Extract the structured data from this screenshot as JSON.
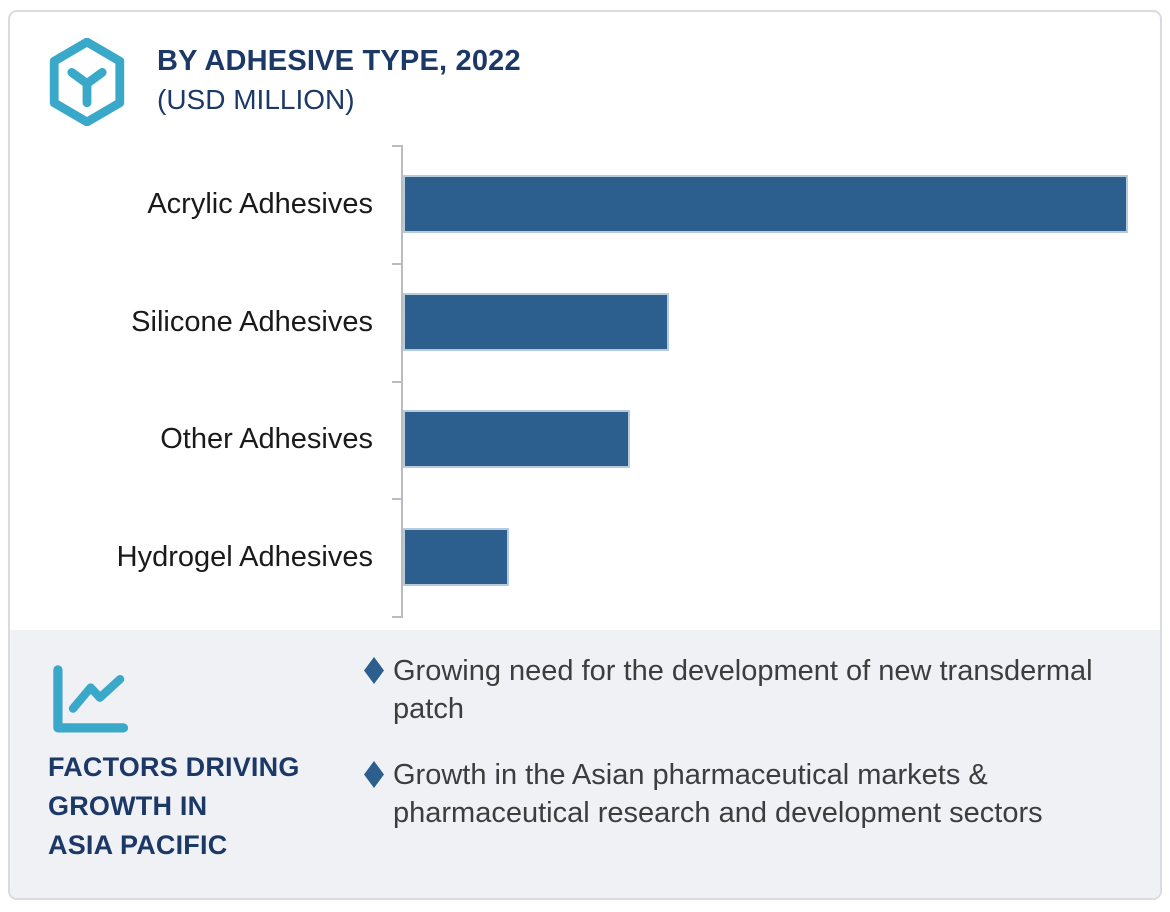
{
  "header": {
    "icon": "hexagon-box-icon",
    "title_line1": "BY ADHESIVE TYPE, 2022",
    "title_line2": "(USD MILLION)"
  },
  "chart_data": {
    "type": "bar",
    "orientation": "horizontal",
    "title": "BY ADHESIVE TYPE, 2022 (USD MILLION)",
    "categories": [
      "Acrylic Adhesives",
      "Silicone Adhesives",
      "Other Adhesives",
      "Hydrogel Adhesives"
    ],
    "values_relative_pct_of_max": [
      100,
      36.7,
      31.3,
      14.6
    ],
    "value_axis_visible": false,
    "gridlines": false,
    "legend": "none",
    "bar_color": "#2d5f8e",
    "bar_border_color": "#b6cbdc",
    "xlabel": "",
    "ylabel": "",
    "xlim": [
      0,
      105
    ]
  },
  "factors_panel": {
    "icon": "line-chart-icon",
    "heading_lines": [
      "FACTORS DRIVING",
      "GROWTH IN",
      "ASIA PACIFIC"
    ],
    "bullets": [
      "Growing need for the development of new transdermal patch",
      "Growth in the Asian pharmaceutical markets & pharmaceutical research and development sectors"
    ]
  },
  "colors": {
    "accent_teal": "#3aa8c8",
    "navy_text": "#1c3867",
    "bar_blue": "#2d5f8e",
    "bar_border": "#b6cbdc",
    "axis_gray": "#b9bcc0",
    "panel_background": "#f0f1f5",
    "card_border": "#d9dbe0",
    "body_text": "#3d3d3d"
  }
}
